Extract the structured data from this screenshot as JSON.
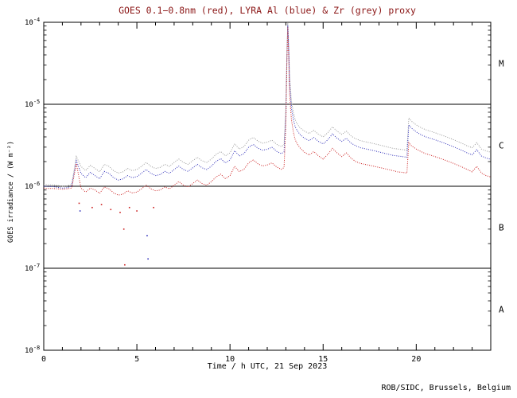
{
  "page": {
    "title": "GOES 0.1−0.8nm (red), LYRA Al (blue) & Zr (grey) proxy",
    "xlabel": "Time / h UTC, 21 Sep 2023",
    "ylabel": "GOES irradiance / (W m⁻²)",
    "footer": "ROB/SIDC, Brussels, Belgium"
  },
  "colors": {
    "title": "#8b1616",
    "axis": "#000000",
    "background": "#ffffff",
    "goes_red": "#cc2222",
    "lyra_al_blue": "#3333bb",
    "lyra_zr_grey": "#999999"
  },
  "chart_data": {
    "type": "line",
    "title": "GOES 0.1−0.8nm (red), LYRA Al (blue) & Zr (grey) proxy",
    "xlabel": "Time / h UTC, 21 Sep 2023",
    "ylabel": "GOES irradiance / (W m⁻²)",
    "yscale": "log",
    "xlim": [
      0,
      24
    ],
    "ylim": [
      1e-08,
      0.0001
    ],
    "grid": false,
    "legend": "encoded in title colors",
    "xticks": {
      "major": [
        0,
        5,
        10,
        15,
        20
      ],
      "labels": [
        "0",
        "5",
        "10",
        "15",
        "20"
      ],
      "minor_step": 1
    },
    "yticks": [
      {
        "exp": "-4",
        "value": 0.0001
      },
      {
        "exp": "-5",
        "value": 1e-05
      },
      {
        "exp": "-6",
        "value": 1e-06
      },
      {
        "exp": "-7",
        "value": 1e-07
      },
      {
        "exp": "-8",
        "value": 1e-08
      }
    ],
    "hlines": [
      1e-05,
      1e-06,
      1e-07
    ],
    "class_labels": [
      {
        "label": "M",
        "y": 3.16e-05
      },
      {
        "label": "C",
        "y": 3.16e-06
      },
      {
        "label": "B",
        "y": 3.16e-07
      },
      {
        "label": "A",
        "y": 3.16e-08
      }
    ],
    "unit_scale": 1e-06,
    "x": [
      0,
      0.25,
      0.5,
      0.75,
      1,
      1.25,
      1.5,
      1.75,
      2,
      2.25,
      2.5,
      2.75,
      3,
      3.25,
      3.5,
      3.75,
      4,
      4.25,
      4.5,
      4.75,
      5,
      5.25,
      5.5,
      5.75,
      6,
      6.25,
      6.5,
      6.75,
      7,
      7.25,
      7.5,
      7.75,
      8,
      8.25,
      8.5,
      8.75,
      9,
      9.25,
      9.5,
      9.75,
      10,
      10.25,
      10.5,
      10.75,
      11,
      11.25,
      11.5,
      11.75,
      12,
      12.25,
      12.5,
      12.75,
      12.9,
      13,
      13.05,
      13.1,
      13.15,
      13.2,
      13.3,
      13.4,
      13.5,
      13.6,
      13.75,
      14,
      14.25,
      14.5,
      14.75,
      15,
      15.25,
      15.5,
      15.75,
      16,
      16.25,
      16.5,
      16.75,
      17,
      17.25,
      17.5,
      17.75,
      18,
      18.25,
      18.5,
      18.75,
      19,
      19.25,
      19.5,
      19.6,
      19.75,
      20,
      20.25,
      20.5,
      20.75,
      21,
      21.25,
      21.5,
      21.75,
      22,
      22.25,
      22.5,
      22.75,
      23,
      23.25,
      23.5,
      23.75,
      24
    ],
    "series": [
      {
        "key": "grey",
        "name": "LYRA Zr proxy",
        "color": "#999999",
        "values": [
          1.05,
          1.04,
          1.04,
          1.02,
          1.0,
          1.01,
          1.05,
          2.3,
          1.75,
          1.55,
          1.8,
          1.65,
          1.5,
          1.85,
          1.75,
          1.55,
          1.45,
          1.5,
          1.65,
          1.55,
          1.6,
          1.75,
          1.95,
          1.75,
          1.65,
          1.7,
          1.85,
          1.75,
          1.95,
          2.15,
          1.95,
          1.85,
          2.05,
          2.25,
          2.05,
          1.95,
          2.15,
          2.45,
          2.65,
          2.35,
          2.55,
          3.3,
          2.85,
          3.05,
          3.65,
          3.95,
          3.55,
          3.35,
          3.45,
          3.65,
          3.25,
          3.05,
          3.2,
          9.0,
          40,
          98,
          55,
          22,
          11,
          8.0,
          6.5,
          5.8,
          5.2,
          4.7,
          4.4,
          4.8,
          4.3,
          4.0,
          4.5,
          5.3,
          4.7,
          4.3,
          4.7,
          4.1,
          3.8,
          3.6,
          3.5,
          3.4,
          3.3,
          3.2,
          3.1,
          3.0,
          2.9,
          2.85,
          2.8,
          2.75,
          6.8,
          6.2,
          5.6,
          5.2,
          4.9,
          4.7,
          4.5,
          4.3,
          4.1,
          3.9,
          3.7,
          3.5,
          3.3,
          3.1,
          2.95,
          3.4,
          2.85,
          2.7,
          2.6
        ]
      },
      {
        "key": "blue",
        "name": "LYRA Al proxy",
        "color": "#3333bb",
        "values": [
          1.0,
          0.99,
          0.99,
          0.97,
          0.95,
          0.96,
          1.0,
          2.05,
          1.44,
          1.27,
          1.48,
          1.35,
          1.23,
          1.52,
          1.44,
          1.27,
          1.19,
          1.23,
          1.35,
          1.27,
          1.31,
          1.44,
          1.6,
          1.44,
          1.35,
          1.39,
          1.52,
          1.44,
          1.6,
          1.76,
          1.6,
          1.52,
          1.68,
          1.85,
          1.68,
          1.6,
          1.76,
          2.01,
          2.17,
          1.93,
          2.09,
          2.71,
          2.34,
          2.5,
          2.99,
          3.24,
          2.91,
          2.75,
          2.83,
          2.99,
          2.67,
          2.5,
          2.62,
          7.4,
          33,
          92,
          48,
          18,
          9.0,
          6.6,
          5.3,
          4.8,
          4.3,
          3.85,
          3.6,
          3.94,
          3.53,
          3.28,
          3.69,
          4.35,
          3.85,
          3.53,
          3.85,
          3.36,
          3.12,
          2.95,
          2.87,
          2.79,
          2.71,
          2.62,
          2.54,
          2.46,
          2.38,
          2.34,
          2.3,
          2.26,
          5.6,
          5.1,
          4.6,
          4.26,
          4.02,
          3.85,
          3.69,
          3.53,
          3.36,
          3.2,
          3.03,
          2.87,
          2.71,
          2.54,
          2.42,
          2.79,
          2.34,
          2.21,
          2.13
        ]
      },
      {
        "key": "red",
        "name": "GOES 0.1−0.8nm",
        "color": "#cc2222",
        "values": [
          0.95,
          0.94,
          0.94,
          0.93,
          0.92,
          0.93,
          0.95,
          1.9,
          0.95,
          0.85,
          0.95,
          0.9,
          0.82,
          0.98,
          0.93,
          0.83,
          0.78,
          0.8,
          0.88,
          0.83,
          0.85,
          0.93,
          1.03,
          0.93,
          0.88,
          0.9,
          0.98,
          0.93,
          1.03,
          1.14,
          1.03,
          0.98,
          1.08,
          1.19,
          1.08,
          1.03,
          1.14,
          1.3,
          1.4,
          1.24,
          1.35,
          1.75,
          1.51,
          1.61,
          1.93,
          2.09,
          1.88,
          1.77,
          1.82,
          1.93,
          1.72,
          1.61,
          1.69,
          5.5,
          28,
          88,
          40,
          13,
          6.5,
          4.6,
          3.7,
          3.3,
          2.95,
          2.6,
          2.4,
          2.65,
          2.35,
          2.15,
          2.45,
          2.9,
          2.55,
          2.3,
          2.55,
          2.2,
          2.0,
          1.9,
          1.85,
          1.8,
          1.75,
          1.7,
          1.65,
          1.6,
          1.55,
          1.5,
          1.48,
          1.45,
          3.4,
          3.1,
          2.85,
          2.65,
          2.5,
          2.4,
          2.3,
          2.2,
          2.1,
          2.0,
          1.9,
          1.8,
          1.7,
          1.6,
          1.5,
          1.75,
          1.45,
          1.35,
          1.3
        ]
      }
    ],
    "scatter": [
      {
        "x": 1.9,
        "y": 0.62,
        "series": "red"
      },
      {
        "x": 1.95,
        "y": 0.5,
        "series": "blue"
      },
      {
        "x": 2.6,
        "y": 0.55,
        "series": "red"
      },
      {
        "x": 3.1,
        "y": 0.6,
        "series": "red"
      },
      {
        "x": 3.6,
        "y": 0.52,
        "series": "red"
      },
      {
        "x": 4.1,
        "y": 0.48,
        "series": "red"
      },
      {
        "x": 4.3,
        "y": 0.3,
        "series": "red"
      },
      {
        "x": 4.35,
        "y": 0.11,
        "series": "red"
      },
      {
        "x": 4.6,
        "y": 0.55,
        "series": "red"
      },
      {
        "x": 5.0,
        "y": 0.5,
        "series": "red"
      },
      {
        "x": 5.55,
        "y": 0.25,
        "series": "blue"
      },
      {
        "x": 5.6,
        "y": 0.13,
        "series": "blue"
      },
      {
        "x": 5.9,
        "y": 0.55,
        "series": "red"
      }
    ]
  }
}
